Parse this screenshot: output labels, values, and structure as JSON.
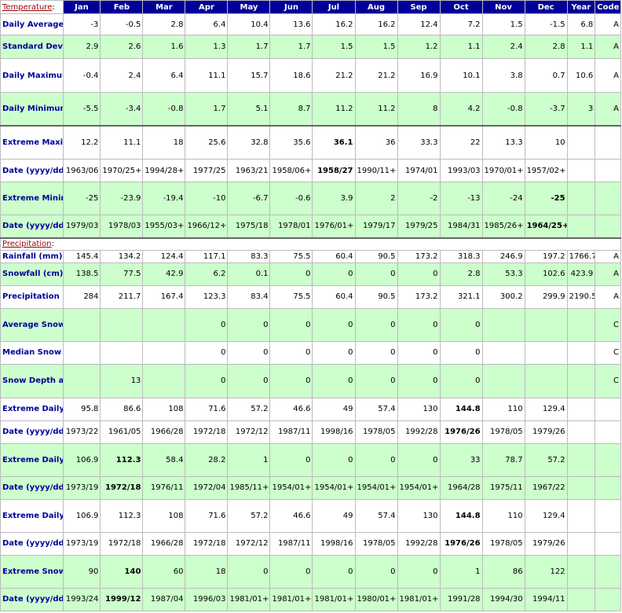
{
  "header": {
    "temperature_label": "Temperature",
    "precipitation_label": "Precipitation",
    "section_colon": ":",
    "months": [
      "Jan",
      "Feb",
      "Mar",
      "Apr",
      "May",
      "Jun",
      "Jul",
      "Aug",
      "Sep",
      "Oct",
      "Nov",
      "Dec"
    ],
    "year": "Year",
    "code": "Code"
  },
  "temperature_rows": [
    {
      "label": "Daily Average (°C)",
      "values": [
        "-3",
        "-0.5",
        "2.8",
        "6.4",
        "10.4",
        "13.6",
        "16.2",
        "16.2",
        "12.4",
        "7.2",
        "1.5",
        "-1.5"
      ],
      "year": "6.8",
      "code": "A",
      "shade": false,
      "bold_index": -1
    },
    {
      "label": "Standard Deviation",
      "values": [
        "2.9",
        "2.6",
        "1.6",
        "1.3",
        "1.7",
        "1.7",
        "1.5",
        "1.5",
        "1.2",
        "1.1",
        "2.4",
        "2.8"
      ],
      "year": "1.1",
      "code": "A",
      "shade": true,
      "bold_index": -1
    },
    {
      "label": "Daily Maximum (°C)",
      "values": [
        "-0.4",
        "2.4",
        "6.4",
        "11.1",
        "15.7",
        "18.6",
        "21.2",
        "21.2",
        "16.9",
        "10.1",
        "3.8",
        "0.7"
      ],
      "year": "10.6",
      "code": "A",
      "shade": false,
      "bold_index": -1
    },
    {
      "label": "Daily Minimum (°C)",
      "values": [
        "-5.5",
        "-3.4",
        "-0.8",
        "1.7",
        "5.1",
        "8.7",
        "11.2",
        "11.2",
        "8",
        "4.2",
        "-0.8",
        "-3.7"
      ],
      "year": "3",
      "code": "A",
      "shade": true,
      "bold_index": -1
    },
    {
      "label": "Extreme Maximum (°C)",
      "values": [
        "12.2",
        "11.1",
        "18",
        "25.6",
        "32.8",
        "35.6",
        "36.1",
        "36",
        "33.3",
        "22",
        "13.3",
        "10"
      ],
      "year": "",
      "code": "",
      "shade": false,
      "bold_index": 6
    },
    {
      "label": "Date (yyyy/dd)",
      "values": [
        "1963/06",
        "1970/25+",
        "1994/28+",
        "1977/25",
        "1963/21",
        "1958/06+",
        "1958/27",
        "1990/11+",
        "1974/01",
        "1993/03",
        "1970/01+",
        "1957/02+"
      ],
      "year": "",
      "code": "",
      "shade": false,
      "bold_index": 6
    },
    {
      "label": "Extreme Minimum (°C)",
      "values": [
        "-25",
        "-23.9",
        "-19.4",
        "-10",
        "-6.7",
        "-0.6",
        "3.9",
        "2",
        "-2",
        "-13",
        "-24",
        "-25"
      ],
      "year": "",
      "code": "",
      "shade": true,
      "bold_index": 11
    },
    {
      "label": "Date (yyyy/dd)",
      "values": [
        "1979/03",
        "1978/03",
        "1955/03+",
        "1966/12+",
        "1975/18",
        "1978/01",
        "1976/01+",
        "1979/17",
        "1979/25",
        "1984/31",
        "1985/26+",
        "1964/25+"
      ],
      "year": "",
      "code": "",
      "shade": true,
      "bold_index": 11
    }
  ],
  "precipitation_rows": [
    {
      "label": "Rainfall (mm)",
      "values": [
        "145.4",
        "134.2",
        "124.4",
        "117.1",
        "83.3",
        "75.5",
        "60.4",
        "90.5",
        "173.2",
        "318.3",
        "246.9",
        "197.2"
      ],
      "year": "1766.7",
      "code": "A",
      "shade": false,
      "bold_index": -1
    },
    {
      "label": "Snowfall (cm)",
      "values": [
        "138.5",
        "77.5",
        "42.9",
        "6.2",
        "0.1",
        "0",
        "0",
        "0",
        "0",
        "2.8",
        "53.3",
        "102.6"
      ],
      "year": "423.9",
      "code": "A",
      "shade": true,
      "bold_index": -1
    },
    {
      "label": "Precipitation (mm)",
      "values": [
        "284",
        "211.7",
        "167.4",
        "123.3",
        "83.4",
        "75.5",
        "60.4",
        "90.5",
        "173.2",
        "321.1",
        "300.2",
        "299.9"
      ],
      "year": "2190.5",
      "code": "A",
      "shade": false,
      "bold_index": -1
    },
    {
      "label": "Average Snow Depth (cm)",
      "values": [
        "",
        "",
        "",
        "0",
        "0",
        "0",
        "0",
        "0",
        "0",
        "0",
        "",
        ""
      ],
      "year": "",
      "code": "C",
      "shade": true,
      "bold_index": -1
    },
    {
      "label": "Median Snow Depth (cm)",
      "values": [
        "",
        "",
        "",
        "0",
        "0",
        "0",
        "0",
        "0",
        "0",
        "0",
        "",
        ""
      ],
      "year": "",
      "code": "C",
      "shade": false,
      "bold_index": -1
    },
    {
      "label": "Snow Depth at Month-end (cm)",
      "values": [
        "",
        "13",
        "",
        "0",
        "0",
        "0",
        "0",
        "0",
        "0",
        "0",
        "",
        ""
      ],
      "year": "",
      "code": "C",
      "shade": true,
      "bold_index": -1
    },
    {
      "label": "Extreme Daily Rainfall (mm)",
      "values": [
        "95.8",
        "86.6",
        "108",
        "71.6",
        "57.2",
        "46.6",
        "49",
        "57.4",
        "130",
        "144.8",
        "110",
        "129.4"
      ],
      "year": "",
      "code": "",
      "shade": false,
      "bold_index": 9
    },
    {
      "label": "Date (yyyy/dd)",
      "values": [
        "1973/22",
        "1961/05",
        "1966/28",
        "1972/18",
        "1972/12",
        "1987/11",
        "1998/16",
        "1978/05",
        "1992/28",
        "1976/26",
        "1978/05",
        "1979/26"
      ],
      "year": "",
      "code": "",
      "shade": false,
      "bold_index": 9
    },
    {
      "label": "Extreme Daily Snowfall (cm)",
      "values": [
        "106.9",
        "112.3",
        "58.4",
        "28.2",
        "1",
        "0",
        "0",
        "0",
        "0",
        "33",
        "78.7",
        "57.2"
      ],
      "year": "",
      "code": "",
      "shade": true,
      "bold_index": 1
    },
    {
      "label": "Date (yyyy/dd)",
      "values": [
        "1973/19",
        "1972/18",
        "1976/11",
        "1972/04",
        "1985/11+",
        "1954/01+",
        "1954/01+",
        "1954/01+",
        "1954/01+",
        "1964/28",
        "1975/11",
        "1967/22"
      ],
      "year": "",
      "code": "",
      "shade": true,
      "bold_index": 1
    },
    {
      "label": "Extreme Daily Precipitation (mm)",
      "values": [
        "106.9",
        "112.3",
        "108",
        "71.6",
        "57.2",
        "46.6",
        "49",
        "57.4",
        "130",
        "144.8",
        "110",
        "129.4"
      ],
      "year": "",
      "code": "",
      "shade": false,
      "bold_index": 9
    },
    {
      "label": "Date (yyyy/dd)",
      "values": [
        "1973/19",
        "1972/18",
        "1966/28",
        "1972/18",
        "1972/12",
        "1987/11",
        "1998/16",
        "1978/05",
        "1992/28",
        "1976/26",
        "1978/05",
        "1979/26"
      ],
      "year": "",
      "code": "",
      "shade": false,
      "bold_index": 9
    },
    {
      "label": "Extreme Snow Depth (cm)",
      "values": [
        "90",
        "140",
        "60",
        "18",
        "0",
        "0",
        "0",
        "0",
        "0",
        "1",
        "86",
        "122"
      ],
      "year": "",
      "code": "",
      "shade": true,
      "bold_index": 1
    },
    {
      "label": "Date (yyyy/dd)",
      "values": [
        "1993/24",
        "1999/12",
        "1987/04",
        "1996/03",
        "1981/01+",
        "1981/01+",
        "1981/01+",
        "1980/01+",
        "1981/01+",
        "1991/28",
        "1994/30",
        "1994/11"
      ],
      "year": "",
      "code": "",
      "shade": true,
      "bold_index": 1
    }
  ]
}
